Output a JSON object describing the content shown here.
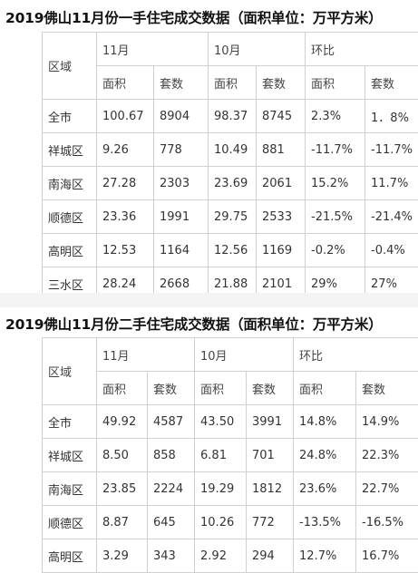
{
  "sections": [
    {
      "title_year": "2019",
      "title_rest": "佛山11月份一手住宅成交数据（面积单位：万平方米）",
      "header_region": "区域",
      "periods": [
        "11月",
        "10月",
        "环比"
      ],
      "subheaders": [
        "面积",
        "套数",
        "面积",
        "套数",
        "面积",
        "套数"
      ],
      "rows": [
        [
          "全市",
          "100.67",
          "8904",
          "98.37",
          "8745",
          "2.3%",
          "1．8%"
        ],
        [
          "祥城区",
          "9.26",
          "778",
          "10.49",
          "881",
          "-11.7%",
          "-11.7%"
        ],
        [
          "南海区",
          "27.28",
          "2303",
          "23.69",
          "2061",
          "15.2%",
          "11.7%"
        ],
        [
          "顺德区",
          "23.36",
          "1991",
          "29.75",
          "2533",
          "-21.5%",
          "-21.4%"
        ],
        [
          "高明区",
          "12.53",
          "1164",
          "12.56",
          "1169",
          "-0.2%",
          "-0.4%"
        ],
        [
          "三水区",
          "28.24",
          "2668",
          "21.88",
          "2101",
          "29%",
          "27%"
        ]
      ]
    },
    {
      "title_year": "2019",
      "title_rest": "佛山11月份二手住宅成交数据（面积单位：万平方米）",
      "header_region": "区域",
      "periods": [
        "11月",
        "10月",
        "环比"
      ],
      "subheaders": [
        "面积",
        "套数",
        "面积",
        "套数",
        "面积",
        "套数"
      ],
      "rows": [
        [
          "全市",
          "49.92",
          "4587",
          "43.50",
          "3991",
          "14.8%",
          "14.9%"
        ],
        [
          "祥城区",
          "8.50",
          "858",
          "6.81",
          "701",
          "24.8%",
          "22.3%"
        ],
        [
          "南海区",
          "23.85",
          "2224",
          "19.29",
          "1812",
          "23.6%",
          "22.7%"
        ],
        [
          "顺德区",
          "8.87",
          "645",
          "10.26",
          "772",
          "-13.5%",
          "-16.5%"
        ],
        [
          "高明区",
          "3.29",
          "343",
          "2.92",
          "294",
          "12.7%",
          "16.7%"
        ]
      ]
    }
  ]
}
